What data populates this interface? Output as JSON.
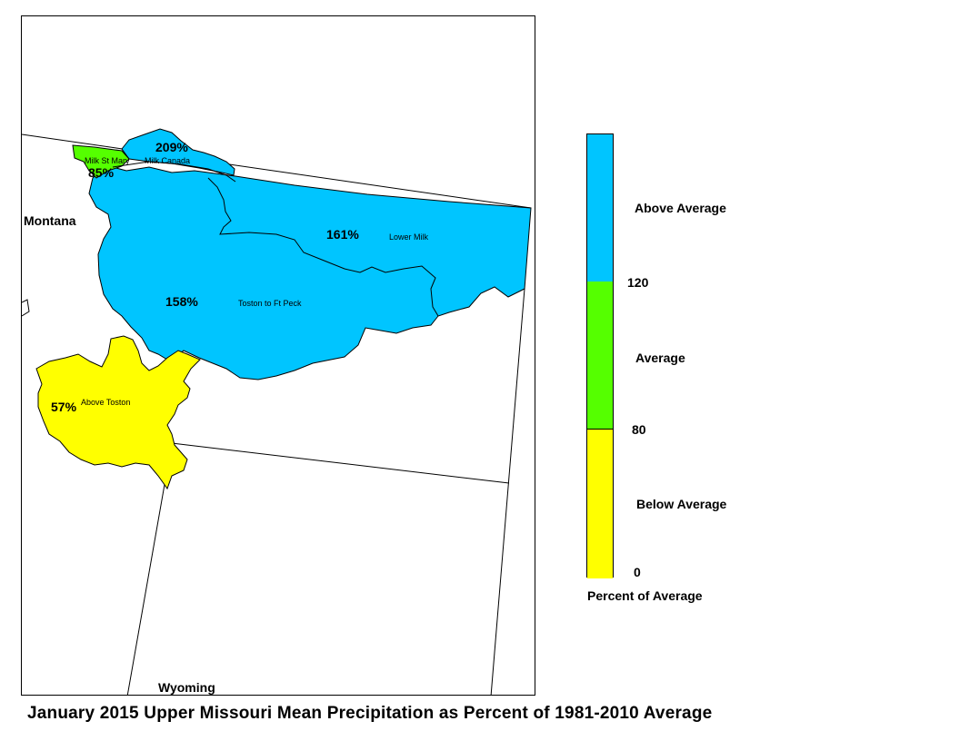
{
  "title": "January 2015 Upper Missouri Mean Precipitation as Percent of 1981-2010 Average",
  "map": {
    "states": [
      "Montana",
      "Wyoming"
    ],
    "basins": [
      {
        "name": "Milk St Mary",
        "percent": "85%",
        "color": "#55ff00"
      },
      {
        "name": "Milk Canada",
        "percent": "209%",
        "color": "#00c5ff"
      },
      {
        "name": "Lower Milk",
        "percent": "161%",
        "color": "#00c5ff"
      },
      {
        "name": "Toston to Ft Peck",
        "percent": "158%",
        "color": "#00c5ff"
      },
      {
        "name": "Above Toston",
        "percent": "57%",
        "color": "#ffff00"
      }
    ]
  },
  "legend": {
    "title": "Percent of Average",
    "classes": [
      {
        "label": "Above Average",
        "color": "#00c5ff"
      },
      {
        "label": "Average",
        "color": "#55ff00"
      },
      {
        "label": "Below Average",
        "color": "#ffff00"
      }
    ],
    "breaks": [
      "120",
      "80",
      "0"
    ]
  }
}
